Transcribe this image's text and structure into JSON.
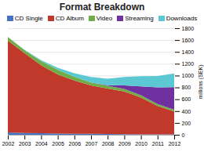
{
  "chart_data": {
    "type": "area",
    "stacked": true,
    "title": "Format Breakdown",
    "ylabel": "millions (SEK)",
    "x": [
      2002,
      2003,
      2004,
      2005,
      2006,
      2007,
      2008,
      2009,
      2010,
      2011,
      2012
    ],
    "series": [
      {
        "name": "CD Single",
        "color": "#4472c4",
        "values": [
          40,
          30,
          25,
          20,
          18,
          15,
          12,
          10,
          8,
          6,
          5
        ]
      },
      {
        "name": "CD Album",
        "color": "#c0392b",
        "values": [
          1550,
          1350,
          1150,
          1000,
          900,
          820,
          770,
          720,
          620,
          480,
          390
        ]
      },
      {
        "name": "Video",
        "color": "#70ad47",
        "values": [
          60,
          50,
          70,
          80,
          60,
          50,
          45,
          45,
          40,
          35,
          30
        ]
      },
      {
        "name": "Streaming",
        "color": "#7030a0",
        "values": [
          0,
          0,
          0,
          0,
          0,
          0,
          10,
          60,
          150,
          280,
          380
        ]
      },
      {
        "name": "Downloads",
        "color": "#5bc8d4",
        "values": [
          0,
          5,
          15,
          30,
          60,
          90,
          110,
          140,
          170,
          190,
          230
        ]
      }
    ],
    "xlim": [
      2002,
      2012
    ],
    "xticks": [
      2002,
      2003,
      2004,
      2005,
      2006,
      2007,
      2008,
      2009,
      2010,
      2011,
      2012
    ],
    "ylim": [
      0,
      1800
    ],
    "yticks": [
      0,
      200,
      400,
      600,
      800,
      1000,
      1200,
      1400,
      1600,
      1800
    ],
    "grid": true,
    "legend": "top"
  }
}
